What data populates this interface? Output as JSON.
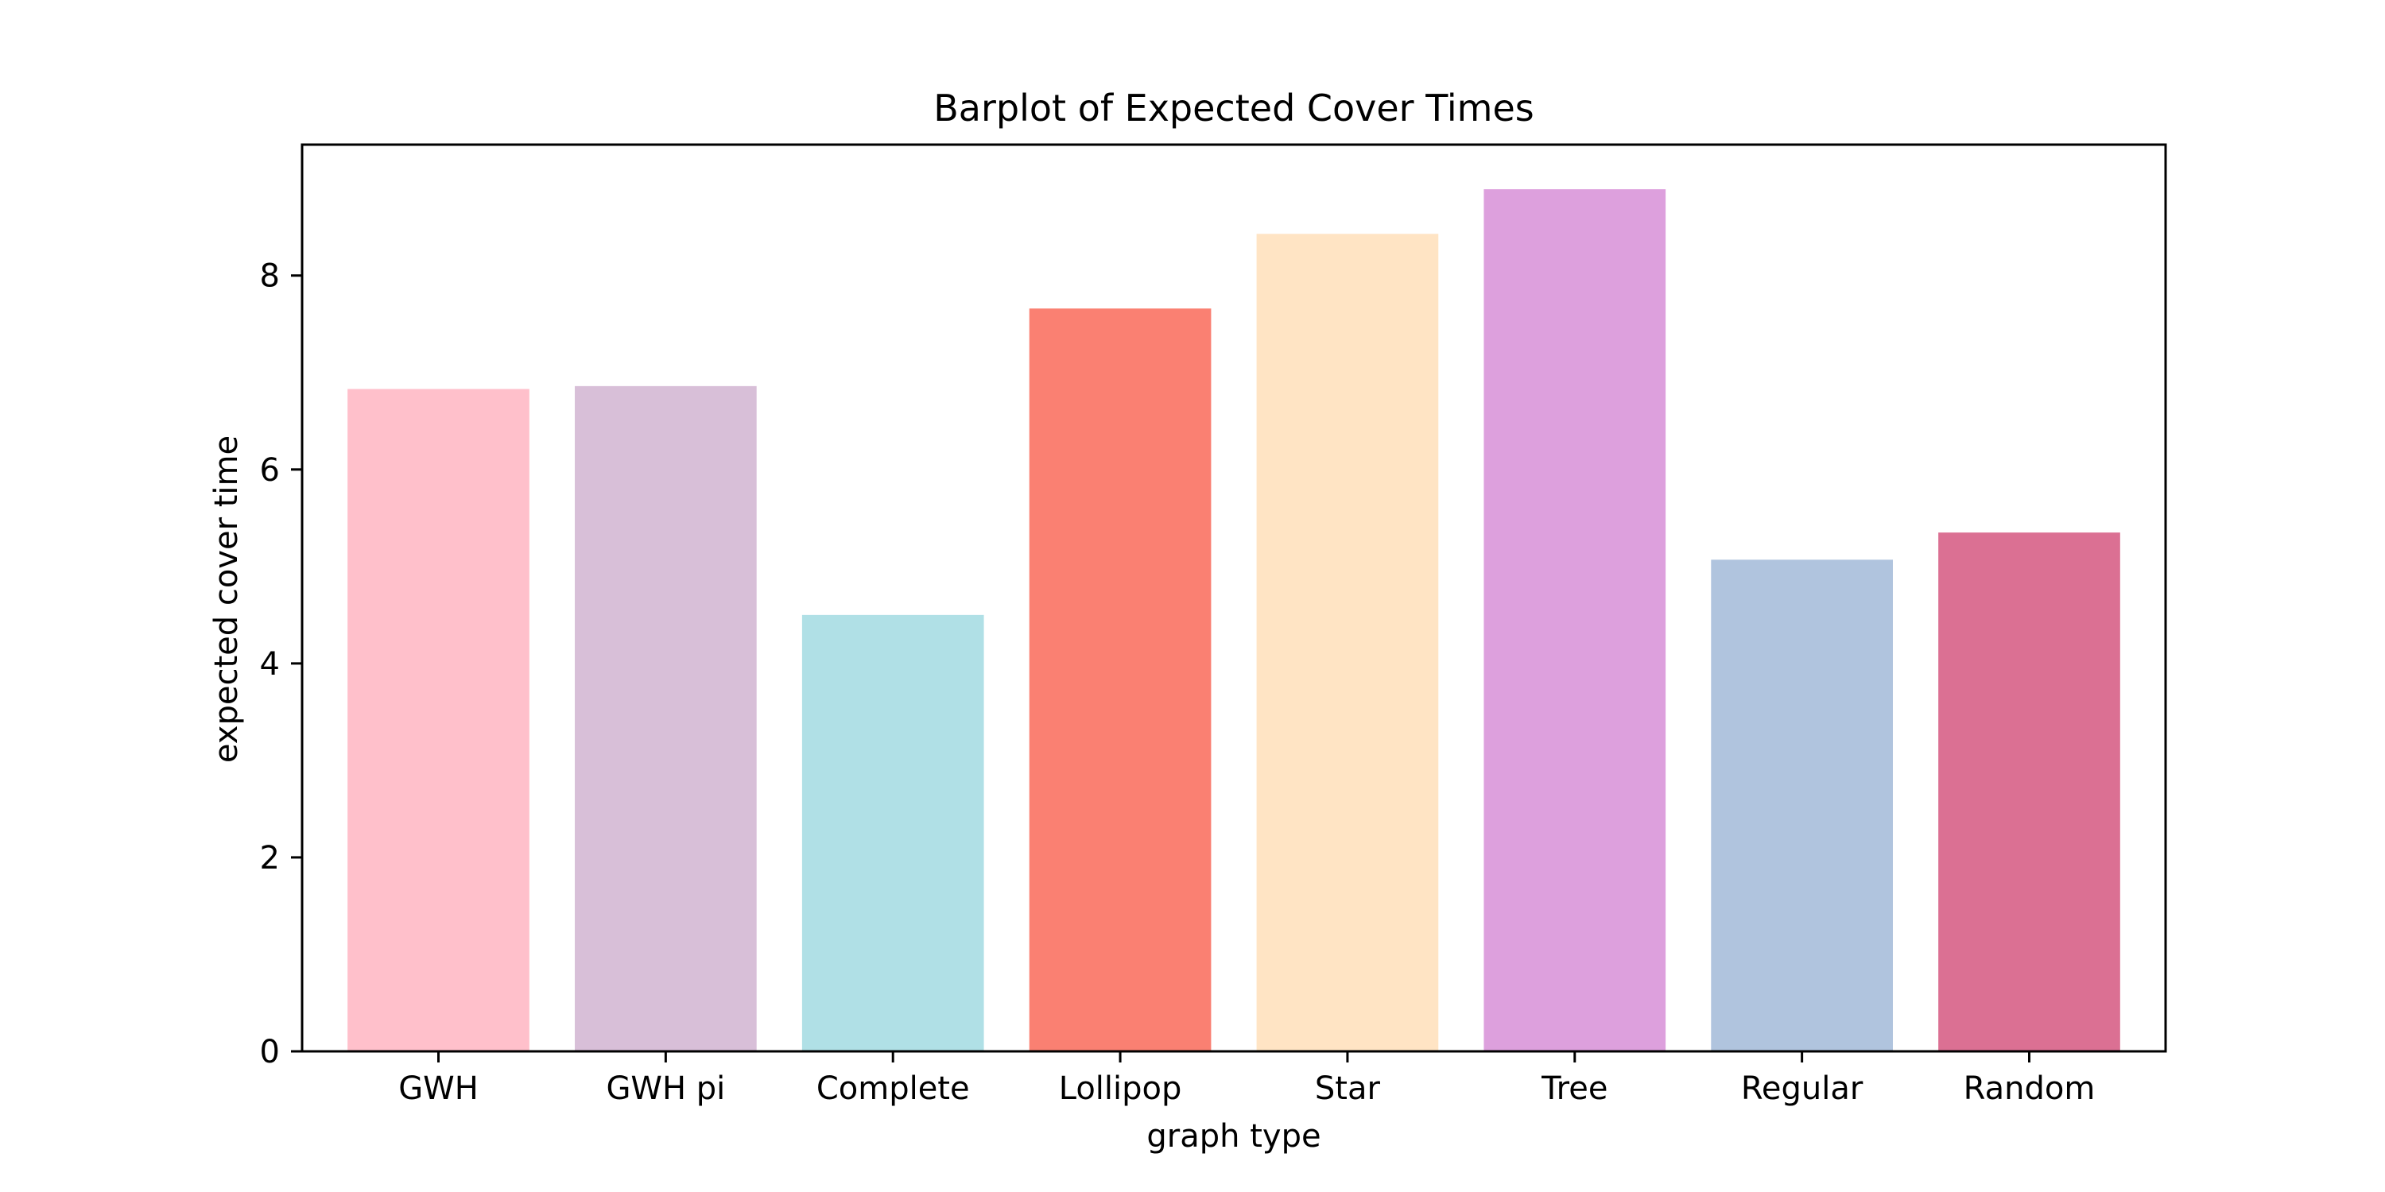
{
  "chart_data": {
    "type": "bar",
    "title": "Barplot of Expected Cover Times",
    "xlabel": "graph type",
    "ylabel": "expected cover time",
    "categories": [
      "GWH",
      "GWH pi",
      "Complete",
      "Lollipop",
      "Star",
      "Tree",
      "Regular",
      "Random"
    ],
    "values": [
      6.83,
      6.86,
      4.5,
      7.66,
      8.43,
      8.89,
      5.07,
      5.35
    ],
    "colors": [
      "#ffc0cb",
      "#d8bfd8",
      "#b0e0e6",
      "#fa8072",
      "#ffe4c4",
      "#dda0dd",
      "#b0c4de",
      "#db7093"
    ],
    "ylim": [
      0,
      9.35
    ],
    "yticks": [
      0,
      2,
      4,
      6,
      8
    ],
    "grid": false,
    "legend": "none"
  }
}
